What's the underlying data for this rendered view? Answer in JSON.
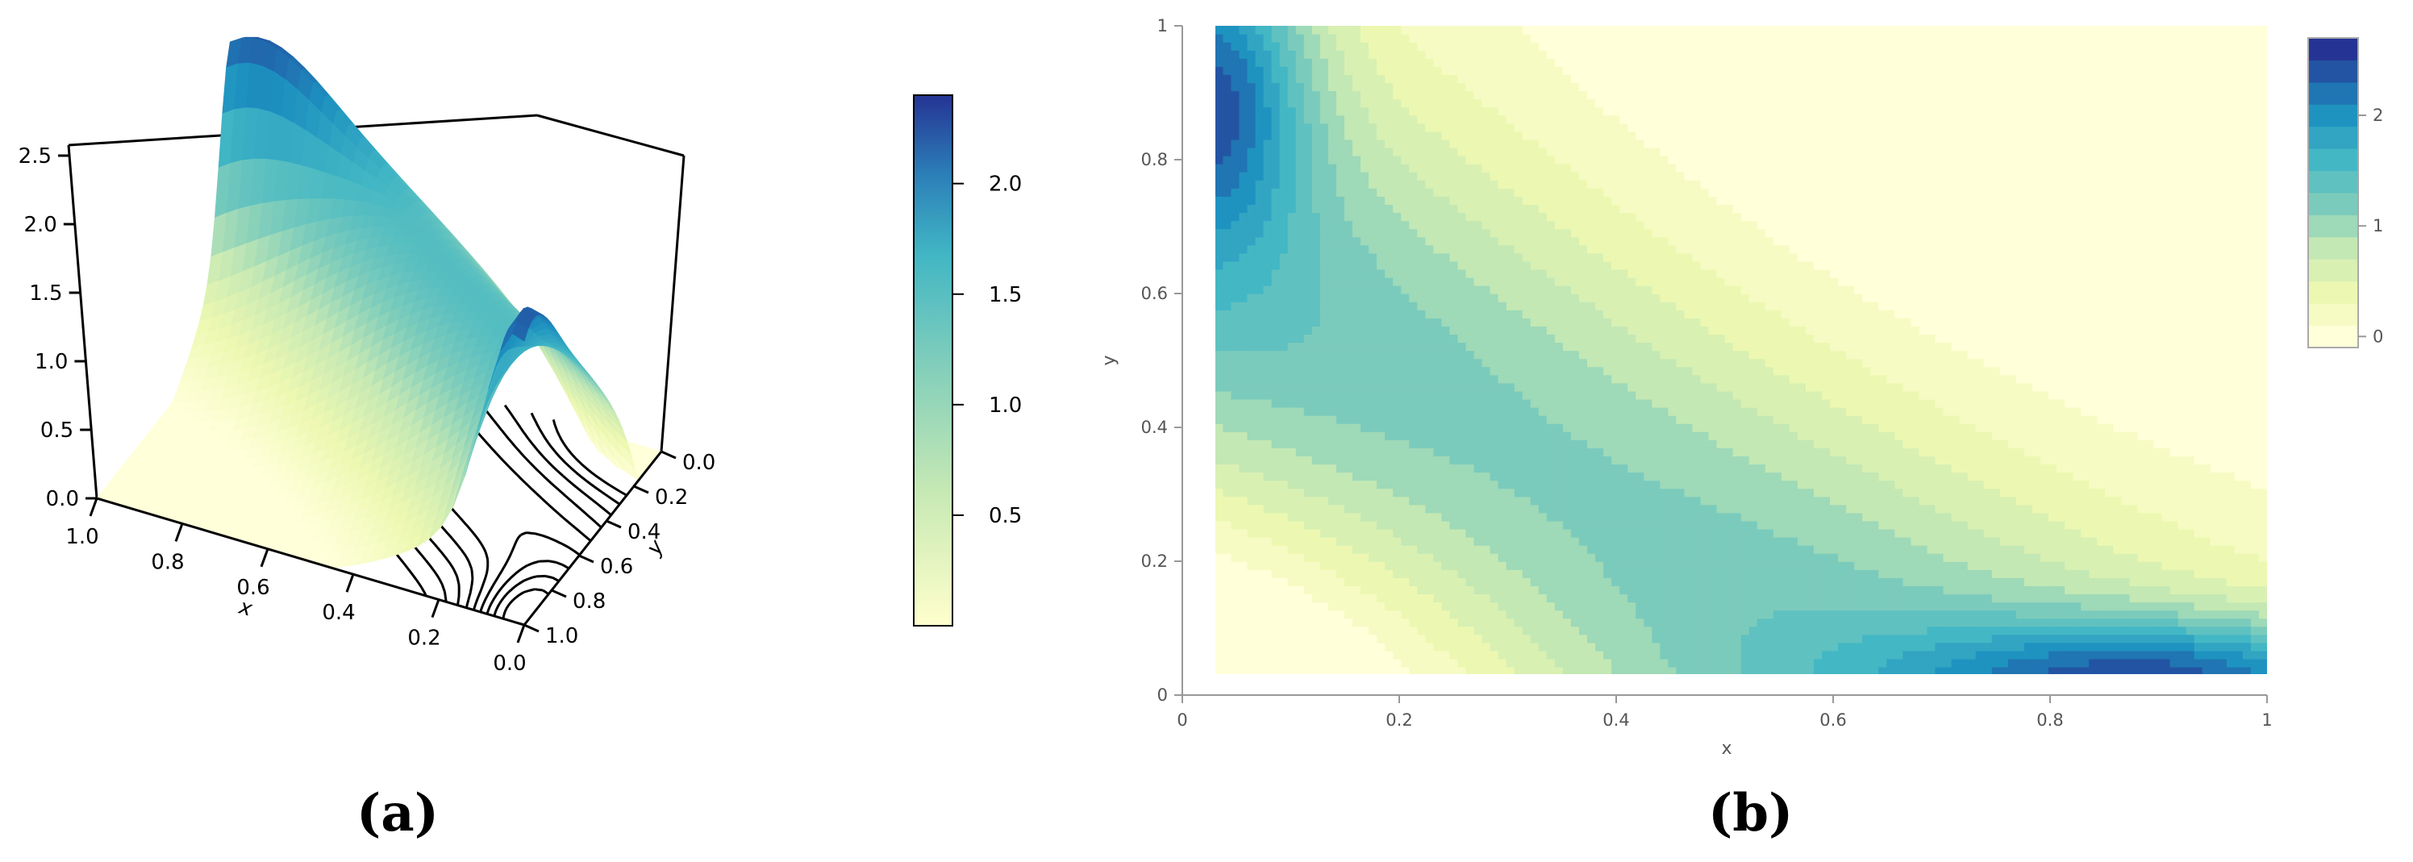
{
  "panels": {
    "a_label": "(a)",
    "b_label": "(b)"
  },
  "chart_data": [
    {
      "type": "surface",
      "panel": "(a)",
      "x_axis": {
        "title": "x",
        "range": [
          0.0,
          1.0
        ],
        "ticks": [
          "1.0",
          "0.8",
          "0.6",
          "0.4",
          "0.2",
          "0.0"
        ]
      },
      "y_axis": {
        "title": "y",
        "range": [
          0.0,
          1.0
        ],
        "ticks": [
          "0.0",
          "0.2",
          "0.4",
          "0.6",
          "0.8",
          "1.0"
        ]
      },
      "z_axis": {
        "title": "",
        "range": [
          0.0,
          2.6
        ],
        "ticks": [
          "0.0",
          "0.5",
          "1.0",
          "1.5",
          "2.0",
          "2.5"
        ]
      },
      "colorbar": {
        "range": [
          0.0,
          2.4
        ],
        "ticks": [
          "0.5",
          "1.0",
          "1.5",
          "2.0"
        ],
        "colors": [
          "#ffffcc",
          "#a1dab4",
          "#41b6c4",
          "#2c7fb8",
          "#253494"
        ]
      },
      "peaks": [
        {
          "x": 0.03,
          "y": 1.0,
          "z": 2.35
        },
        {
          "x": 1.0,
          "y": 0.03,
          "z": 2.35
        }
      ],
      "contour_projection": true,
      "grid": false
    },
    {
      "type": "contour",
      "panel": "(b)",
      "xlabel": "x",
      "ylabel": "y",
      "xlim": [
        0,
        1
      ],
      "ylim": [
        0,
        1
      ],
      "x_ticks": [
        "0",
        "0.2",
        "0.4",
        "0.6",
        "0.8",
        "1"
      ],
      "y_ticks": [
        "0",
        "0.2",
        "0.4",
        "0.6",
        "0.8",
        "1"
      ],
      "data_domain": {
        "x": [
          0.03,
          1.0
        ],
        "y": [
          0.03,
          1.0
        ]
      },
      "levels": [
        0.0,
        0.2,
        0.4,
        0.6,
        0.8,
        1.0,
        1.2,
        1.4,
        1.6,
        1.8,
        2.0,
        2.2,
        2.4,
        2.6
      ],
      "colorbar": {
        "range": [
          -0.1,
          2.7
        ],
        "ticks": [
          "0",
          "1",
          "2"
        ],
        "levels": 14
      },
      "peaks": [
        {
          "x": 0.03,
          "y": 0.92,
          "z": 2.6
        },
        {
          "x": 0.92,
          "y": 0.03,
          "z": 2.6
        }
      ]
    }
  ]
}
